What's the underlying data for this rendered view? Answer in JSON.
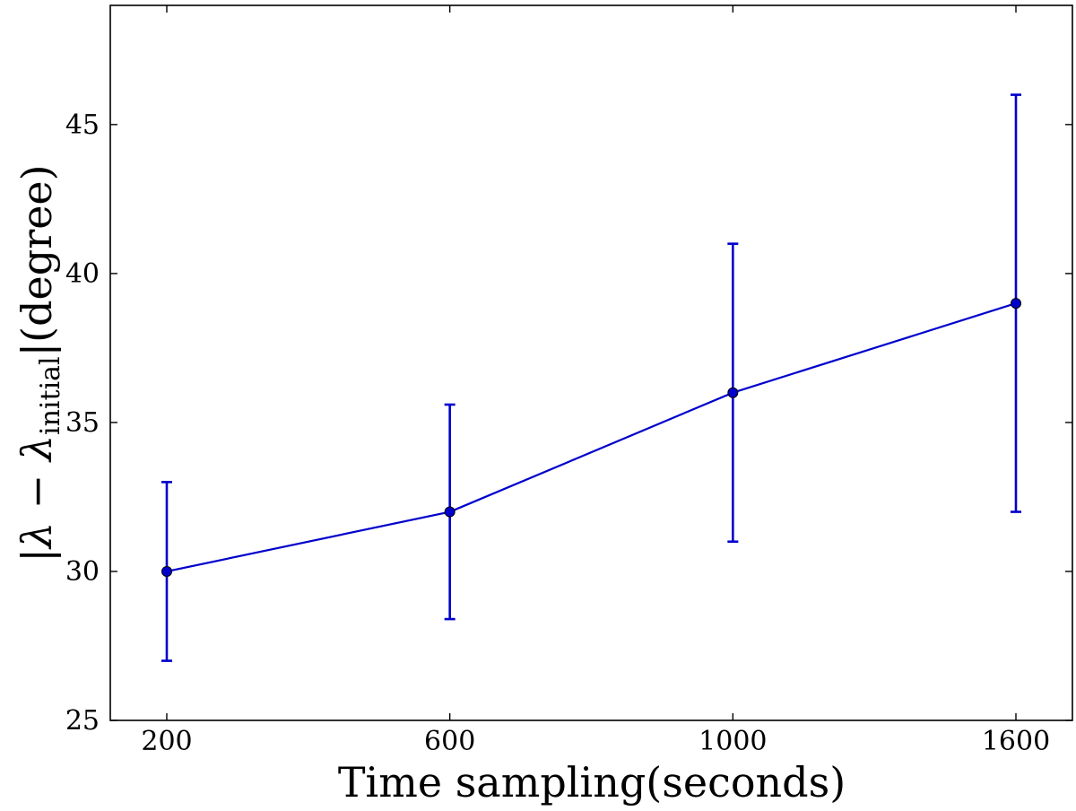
{
  "chart_data": {
    "type": "line",
    "xlabel": "Time sampling(seconds)",
    "ylabel": {
      "open": "|",
      "symbol": "λ",
      "minus": " − ",
      "subscript": "initial",
      "close": "|",
      "unit": "(degree)"
    },
    "categories": [
      "200",
      "600",
      "1000",
      "1600"
    ],
    "ylim": [
      25,
      49
    ],
    "yticks": [
      25,
      30,
      35,
      40,
      45
    ],
    "grid": false,
    "series": [
      {
        "values": [
          30,
          32,
          36,
          39
        ],
        "error_low": [
          27,
          28.4,
          31,
          32
        ],
        "error_high": [
          33,
          35.6,
          41,
          46
        ],
        "color": "#0000cc",
        "marker": "circle"
      }
    ]
  }
}
